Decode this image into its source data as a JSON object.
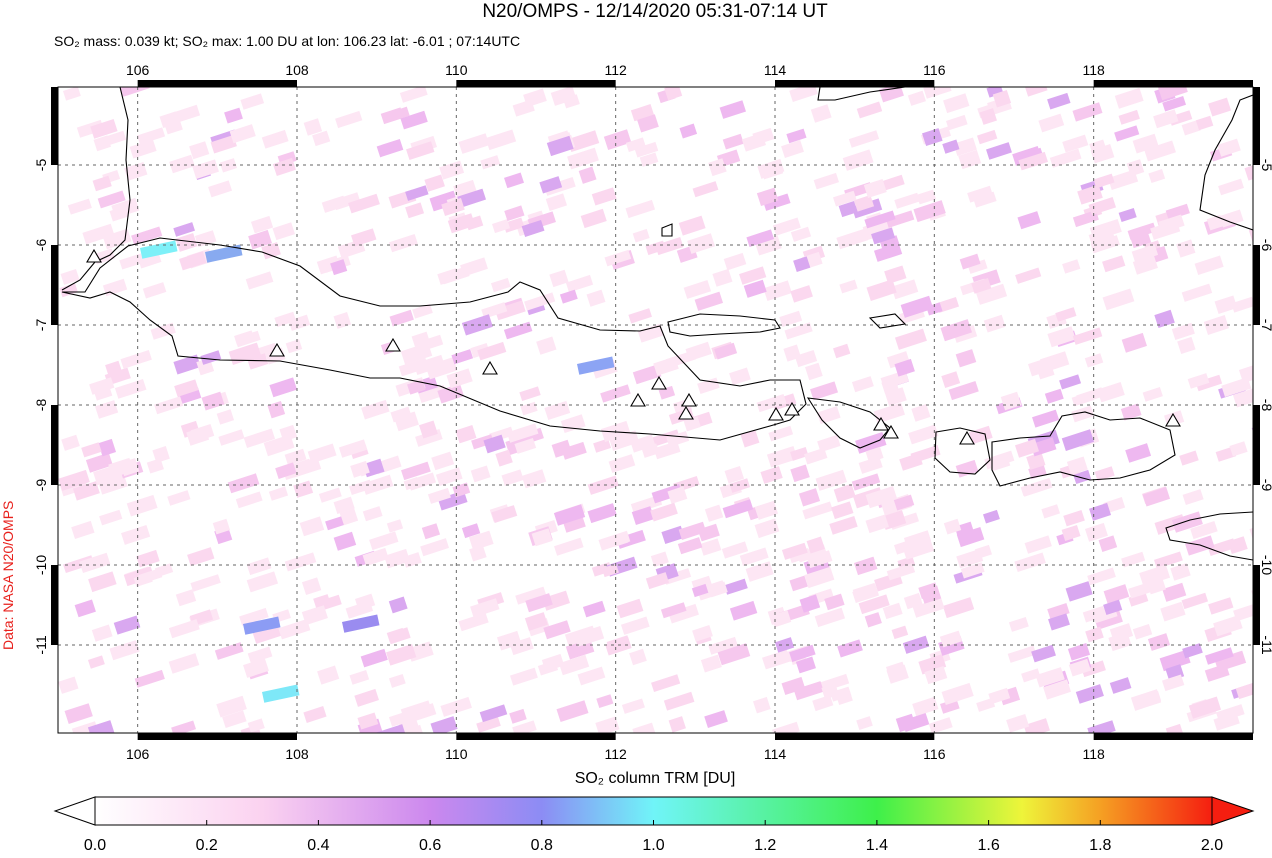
{
  "header": {
    "title": "N20/OMPS - 12/14/2020 05:31-07:14 UT",
    "subtitle": "SO₂ mass: 0.039 kt; SO₂ max: 1.00 DU at lon: 106.23 lat: -6.01 ; 07:14UTC"
  },
  "map": {
    "lon_range": [
      105,
      120
    ],
    "lat_range": [
      -4.025,
      -12.1
    ],
    "lon_ticks": [
      106,
      108,
      110,
      112,
      114,
      116,
      118
    ],
    "lat_ticks": [
      -5,
      -6,
      -7,
      -8,
      -9,
      -10,
      -11
    ]
  },
  "colorbar": {
    "label": "SO₂ column TRM [DU]",
    "ticks": [
      {
        "value": 0,
        "label": "0.0"
      },
      {
        "value": 0.2,
        "label": "0.2"
      },
      {
        "value": 0.4,
        "label": "0.4"
      },
      {
        "value": 0.6,
        "label": "0.6"
      },
      {
        "value": 0.8,
        "label": "0.8"
      },
      {
        "value": 1,
        "label": "1.0"
      },
      {
        "value": 1.2,
        "label": "1.2"
      },
      {
        "value": 1.4,
        "label": "1.4"
      },
      {
        "value": 1.6,
        "label": "1.6"
      },
      {
        "value": 1.8,
        "label": "1.8"
      },
      {
        "value": 2,
        "label": "2.0"
      }
    ]
  },
  "credit": "Data: NASA N20/OMPS"
}
